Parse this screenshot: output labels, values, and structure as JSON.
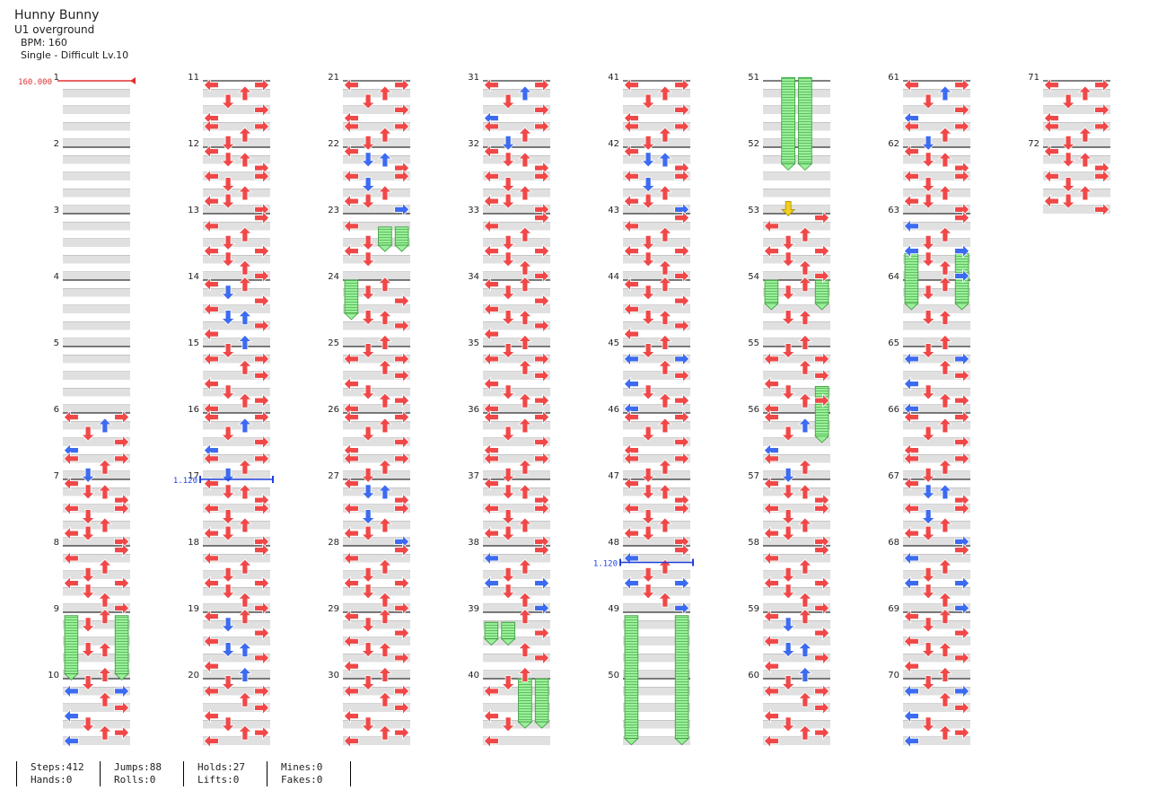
{
  "song": {
    "title": "Hunny Bunny",
    "subtitle": "U1 overground",
    "bpm_text": "BPM: 160",
    "chart_text": "Single - Difficult Lv.10"
  },
  "markers": {
    "bpm_start": "160.000",
    "stop_1": "1.120",
    "stop_2": "1.120"
  },
  "colors": {
    "red_arrow": "#f04848",
    "blue_arrow": "#3d6bf0",
    "hold_green": "#8ee88e",
    "mine_yellow": "#f0d020",
    "row_shade": "#e0e0e0",
    "bpm_marker": "#e03030",
    "stop_marker": "#2040e0"
  },
  "measure_numbers": [
    "1",
    "2",
    "3",
    "4",
    "5",
    "6",
    "7",
    "8",
    "9",
    "10",
    "11",
    "12",
    "13",
    "14",
    "15",
    "16",
    "17",
    "18",
    "19",
    "20",
    "21",
    "22",
    "23",
    "24",
    "25",
    "26",
    "27",
    "28",
    "29",
    "30",
    "31",
    "32",
    "33",
    "34",
    "35",
    "36",
    "37",
    "38",
    "39",
    "40",
    "41",
    "42",
    "43",
    "44",
    "45",
    "46",
    "47",
    "48",
    "49",
    "50",
    "51",
    "52",
    "53",
    "54",
    "55",
    "56",
    "57",
    "58",
    "59",
    "60",
    "61",
    "62",
    "63",
    "64",
    "65",
    "66",
    "67",
    "68",
    "69",
    "70",
    "71",
    "72"
  ],
  "stats": {
    "steps": "Steps:412",
    "hands": "Hands:0",
    "jumps": "Jumps:88",
    "rolls": "Rolls:0",
    "holds": "Holds:27",
    "lifts": "Lifts:0",
    "mines": "Mines:0",
    "fakes": "Fakes:0"
  }
}
